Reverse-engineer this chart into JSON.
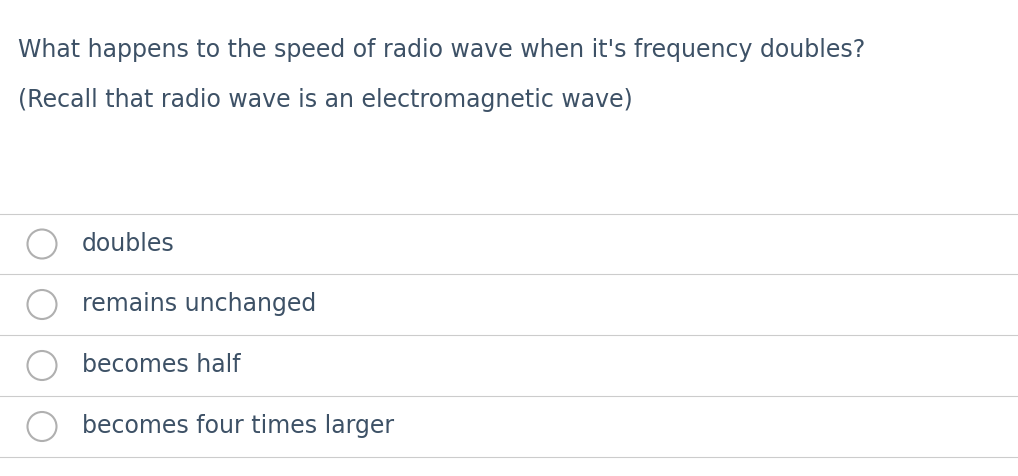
{
  "title_line1": "What happens to the speed of radio wave when it's frequency doubles?",
  "title_line2": "(Recall that radio wave is an electromagnetic wave)",
  "options": [
    "doubles",
    "remains unchanged",
    "becomes half",
    "becomes four times larger"
  ],
  "background_color": "#ffffff",
  "text_color": "#3d5166",
  "divider_color": "#cccccc",
  "circle_edge_color": "#b0b0b0",
  "circle_fill_color": "#ffffff",
  "title_fontsize": 17.0,
  "subtitle_fontsize": 17.0,
  "option_fontsize": 17.0,
  "fig_width": 10.18,
  "fig_height": 4.76
}
